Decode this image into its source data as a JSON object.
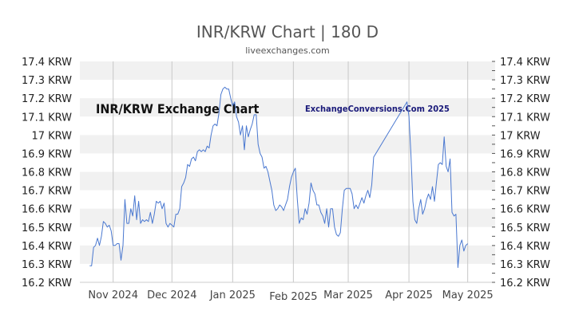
{
  "chart_data": {
    "type": "line",
    "title": "INR/KRW Chart | 180 D",
    "subtitle": "liveexchanges.com",
    "watermark_left": "INR/KRW Exchange Chart",
    "watermark_right": "ExchangeConversions.Com 2025",
    "y_unit": "KRW",
    "ylim": [
      16.2,
      17.4
    ],
    "y_ticks": [
      "17.4 KRW",
      "17.3 KRW",
      "17.2 KRW",
      "17.1 KRW",
      "17 KRW",
      "16.9 KRW",
      "16.8 KRW",
      "16.7 KRW",
      "16.6 KRW",
      "16.5 KRW",
      "16.4 KRW",
      "16.3 KRW",
      "16.2 KRW"
    ],
    "y_tick_values": [
      17.4,
      17.3,
      17.2,
      17.1,
      17.0,
      16.9,
      16.8,
      16.7,
      16.6,
      16.5,
      16.4,
      16.3,
      16.2
    ],
    "x_ticks": [
      "Nov 2024",
      "Dec 2024",
      "Jan 2025",
      "Feb 2025",
      "Mar 2025",
      "Apr 2025",
      "May 2025"
    ],
    "x_tick_dates": [
      "2024-11-01",
      "2024-12-01",
      "2025-01-01",
      "2025-02-01",
      "2025-03-01",
      "2025-04-01",
      "2025-05-01"
    ],
    "xlim": [
      "2024-10-15",
      "2025-05-15"
    ],
    "grid": true,
    "line_color": "#4a78d0",
    "series": [
      {
        "values": [
          [
            "2024-10-20",
            16.29
          ],
          [
            "2024-10-21",
            16.29
          ],
          [
            "2024-10-22",
            16.39
          ],
          [
            "2024-10-23",
            16.4
          ],
          [
            "2024-10-24",
            16.44
          ],
          [
            "2024-10-25",
            16.4
          ],
          [
            "2024-10-26",
            16.45
          ],
          [
            "2024-10-27",
            16.53
          ],
          [
            "2024-10-28",
            16.52
          ],
          [
            "2024-10-29",
            16.5
          ],
          [
            "2024-10-30",
            16.51
          ],
          [
            "2024-10-31",
            16.48
          ],
          [
            "2024-11-01",
            16.4
          ],
          [
            "2024-11-02",
            16.4
          ],
          [
            "2024-11-03",
            16.41
          ],
          [
            "2024-11-04",
            16.41
          ],
          [
            "2024-11-05",
            16.32
          ],
          [
            "2024-11-06",
            16.4
          ],
          [
            "2024-11-07",
            16.65
          ],
          [
            "2024-11-08",
            16.52
          ],
          [
            "2024-11-09",
            16.52
          ],
          [
            "2024-11-10",
            16.6
          ],
          [
            "2024-11-11",
            16.56
          ],
          [
            "2024-11-12",
            16.67
          ],
          [
            "2024-11-13",
            16.54
          ],
          [
            "2024-11-14",
            16.64
          ],
          [
            "2024-11-15",
            16.52
          ],
          [
            "2024-11-16",
            16.54
          ],
          [
            "2024-11-17",
            16.53
          ],
          [
            "2024-11-18",
            16.54
          ],
          [
            "2024-11-19",
            16.53
          ],
          [
            "2024-11-20",
            16.58
          ],
          [
            "2024-11-21",
            16.52
          ],
          [
            "2024-11-22",
            16.57
          ],
          [
            "2024-11-23",
            16.64
          ],
          [
            "2024-11-24",
            16.63
          ],
          [
            "2024-11-25",
            16.64
          ],
          [
            "2024-11-26",
            16.6
          ],
          [
            "2024-11-27",
            16.63
          ],
          [
            "2024-11-28",
            16.52
          ],
          [
            "2024-11-29",
            16.5
          ],
          [
            "2024-11-30",
            16.52
          ],
          [
            "2024-12-01",
            16.51
          ],
          [
            "2024-12-02",
            16.5
          ],
          [
            "2024-12-03",
            16.57
          ],
          [
            "2024-12-04",
            16.57
          ],
          [
            "2024-12-05",
            16.6
          ],
          [
            "2024-12-06",
            16.72
          ],
          [
            "2024-12-07",
            16.74
          ],
          [
            "2024-12-08",
            16.77
          ],
          [
            "2024-12-09",
            16.84
          ],
          [
            "2024-12-10",
            16.83
          ],
          [
            "2024-12-11",
            16.87
          ],
          [
            "2024-12-12",
            16.88
          ],
          [
            "2024-12-13",
            16.86
          ],
          [
            "2024-12-14",
            16.91
          ],
          [
            "2024-12-15",
            16.92
          ],
          [
            "2024-12-16",
            16.91
          ],
          [
            "2024-12-17",
            16.92
          ],
          [
            "2024-12-18",
            16.91
          ],
          [
            "2024-12-19",
            16.94
          ],
          [
            "2024-12-20",
            16.93
          ],
          [
            "2024-12-21",
            17.0
          ],
          [
            "2024-12-22",
            17.05
          ],
          [
            "2024-12-23",
            17.06
          ],
          [
            "2024-12-24",
            17.05
          ],
          [
            "2024-12-25",
            17.12
          ],
          [
            "2024-12-26",
            17.22
          ],
          [
            "2024-12-27",
            17.25
          ],
          [
            "2024-12-28",
            17.26
          ],
          [
            "2024-12-29",
            17.25
          ],
          [
            "2024-12-30",
            17.25
          ],
          [
            "2024-12-31",
            17.2
          ],
          [
            "2025-01-01",
            17.16
          ],
          [
            "2025-01-02",
            17.18
          ],
          [
            "2025-01-03",
            17.1
          ],
          [
            "2025-01-04",
            17.07
          ],
          [
            "2025-01-05",
            17.0
          ],
          [
            "2025-01-06",
            17.05
          ],
          [
            "2025-01-07",
            16.92
          ],
          [
            "2025-01-08",
            17.05
          ],
          [
            "2025-01-09",
            16.99
          ],
          [
            "2025-01-10",
            17.03
          ],
          [
            "2025-01-11",
            17.06
          ],
          [
            "2025-01-12",
            17.11
          ],
          [
            "2025-01-13",
            17.11
          ],
          [
            "2025-01-14",
            16.95
          ],
          [
            "2025-01-15",
            16.9
          ],
          [
            "2025-01-16",
            16.88
          ],
          [
            "2025-01-17",
            16.82
          ],
          [
            "2025-01-18",
            16.83
          ],
          [
            "2025-01-19",
            16.8
          ],
          [
            "2025-01-20",
            16.75
          ],
          [
            "2025-01-21",
            16.7
          ],
          [
            "2025-01-22",
            16.62
          ],
          [
            "2025-01-23",
            16.59
          ],
          [
            "2025-01-24",
            16.6
          ],
          [
            "2025-01-25",
            16.62
          ],
          [
            "2025-01-26",
            16.61
          ],
          [
            "2025-01-27",
            16.59
          ],
          [
            "2025-01-28",
            16.62
          ],
          [
            "2025-01-29",
            16.65
          ],
          [
            "2025-01-30",
            16.72
          ],
          [
            "2025-01-31",
            16.77
          ],
          [
            "2025-02-01",
            16.8
          ],
          [
            "2025-02-02",
            16.82
          ],
          [
            "2025-02-03",
            16.65
          ],
          [
            "2025-02-04",
            16.52
          ],
          [
            "2025-02-05",
            16.55
          ],
          [
            "2025-02-06",
            16.54
          ],
          [
            "2025-02-07",
            16.6
          ],
          [
            "2025-02-08",
            16.57
          ],
          [
            "2025-02-09",
            16.63
          ],
          [
            "2025-02-10",
            16.74
          ],
          [
            "2025-02-11",
            16.7
          ],
          [
            "2025-02-12",
            16.68
          ],
          [
            "2025-02-13",
            16.62
          ],
          [
            "2025-02-14",
            16.62
          ],
          [
            "2025-02-15",
            16.58
          ],
          [
            "2025-02-16",
            16.56
          ],
          [
            "2025-02-17",
            16.52
          ],
          [
            "2025-02-18",
            16.6
          ],
          [
            "2025-02-19",
            16.5
          ],
          [
            "2025-02-20",
            16.6
          ],
          [
            "2025-02-21",
            16.6
          ],
          [
            "2025-02-22",
            16.5
          ],
          [
            "2025-02-23",
            16.46
          ],
          [
            "2025-02-24",
            16.45
          ],
          [
            "2025-02-25",
            16.47
          ],
          [
            "2025-02-26",
            16.6
          ],
          [
            "2025-02-27",
            16.7
          ],
          [
            "2025-02-28",
            16.71
          ],
          [
            "2025-03-01",
            16.71
          ],
          [
            "2025-03-02",
            16.71
          ],
          [
            "2025-03-03",
            16.68
          ],
          [
            "2025-03-04",
            16.6
          ],
          [
            "2025-03-05",
            16.62
          ],
          [
            "2025-03-06",
            16.6
          ],
          [
            "2025-03-07",
            16.63
          ],
          [
            "2025-03-08",
            16.66
          ],
          [
            "2025-03-09",
            16.63
          ],
          [
            "2025-03-10",
            16.67
          ],
          [
            "2025-03-11",
            16.7
          ],
          [
            "2025-03-12",
            16.66
          ],
          [
            "2025-03-13",
            16.73
          ],
          [
            "2025-03-14",
            16.88
          ],
          [
            "2025-03-31",
            17.18
          ],
          [
            "2025-04-01",
            17.1
          ],
          [
            "2025-04-02",
            16.9
          ],
          [
            "2025-04-03",
            16.64
          ],
          [
            "2025-04-04",
            16.54
          ],
          [
            "2025-04-05",
            16.52
          ],
          [
            "2025-04-06",
            16.6
          ],
          [
            "2025-04-07",
            16.65
          ],
          [
            "2025-04-08",
            16.57
          ],
          [
            "2025-04-09",
            16.6
          ],
          [
            "2025-04-10",
            16.65
          ],
          [
            "2025-04-11",
            16.68
          ],
          [
            "2025-04-12",
            16.65
          ],
          [
            "2025-04-13",
            16.72
          ],
          [
            "2025-04-14",
            16.64
          ],
          [
            "2025-04-15",
            16.74
          ],
          [
            "2025-04-16",
            16.84
          ],
          [
            "2025-04-17",
            16.85
          ],
          [
            "2025-04-18",
            16.84
          ],
          [
            "2025-04-19",
            16.99
          ],
          [
            "2025-04-20",
            16.83
          ],
          [
            "2025-04-21",
            16.8
          ],
          [
            "2025-04-22",
            16.87
          ],
          [
            "2025-04-23",
            16.58
          ],
          [
            "2025-04-24",
            16.56
          ],
          [
            "2025-04-25",
            16.57
          ],
          [
            "2025-04-26",
            16.28
          ],
          [
            "2025-04-27",
            16.4
          ],
          [
            "2025-04-28",
            16.43
          ],
          [
            "2025-04-29",
            16.37
          ],
          [
            "2025-04-30",
            16.4
          ],
          [
            "2025-05-01",
            16.41
          ]
        ]
      }
    ]
  }
}
